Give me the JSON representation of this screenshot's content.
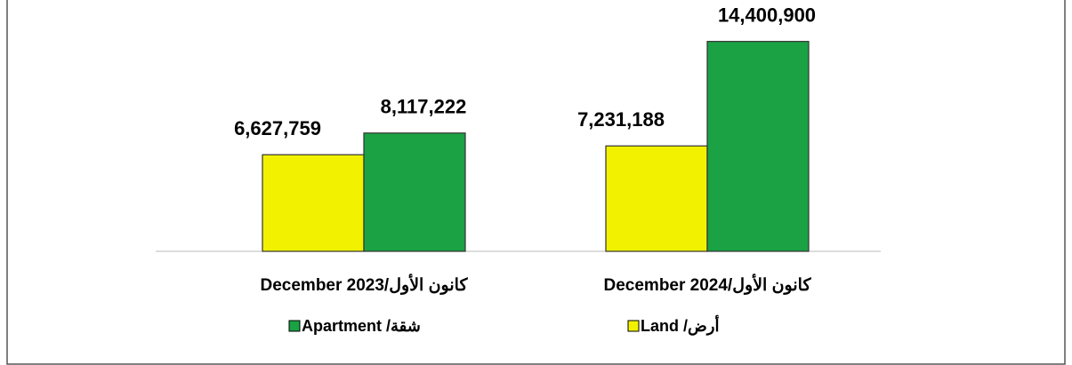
{
  "chart_data": {
    "type": "bar",
    "categories": [
      "December 2023/كانون الأول",
      "December 2024/كانون الأول"
    ],
    "series": [
      {
        "name": "Land /أرض",
        "color": "#f2f200",
        "values": [
          6627759,
          7231188
        ],
        "value_labels": [
          "6,627,759",
          "7,231,188"
        ]
      },
      {
        "name": "Apartment /شقة",
        "color": "#1aa244",
        "values": [
          8117222,
          14400900
        ],
        "value_labels": [
          "8,117,222",
          "14,400,900"
        ]
      }
    ],
    "ylim": [
      0,
      17000000
    ]
  }
}
